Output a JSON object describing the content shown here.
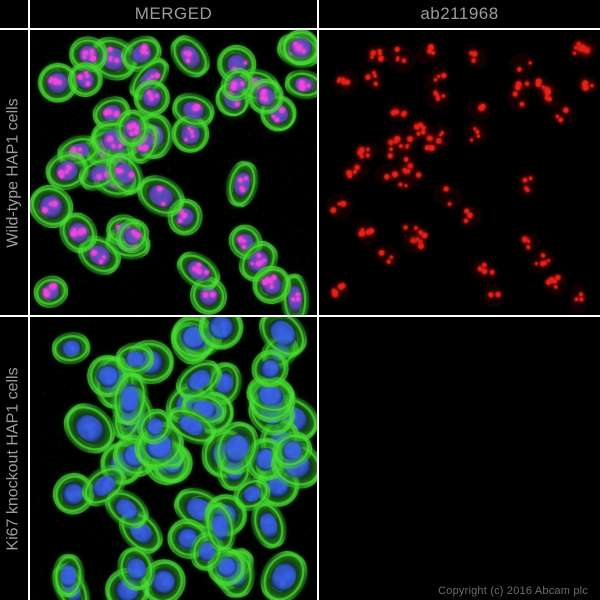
{
  "figure": {
    "column_headers": [
      {
        "label": "MERGED"
      },
      {
        "label": "ab211968"
      }
    ],
    "row_labels": [
      {
        "label": "Wild-type HAP1 cells"
      },
      {
        "label": "Ki67 knockout HAP1 cells"
      }
    ],
    "copyright": "Copyright (c) 2016 Abcam plc",
    "style": {
      "background": "#000000",
      "grid_line_color": "#ffffff",
      "header_text_color": "#9c9c9c",
      "copyright_color": "#6d6d6d"
    },
    "colors": {
      "background": "#000000",
      "cytoplasm_green": "#2db42d",
      "cytoplasm_green_bright": "#4fe636",
      "nucleus_core_wt": "#3e4ec4",
      "nucleus_edge_wt": "#10164f",
      "nucleus_core_ko": "#3c63ee",
      "nucleus_edge_ko": "#12206e",
      "ki67_dot_magenta": "#ee46da",
      "ab_dot_red": "#e62119"
    },
    "panels": [
      {
        "slot": "wild-type-merged",
        "type": "merged",
        "seed": 101,
        "cell_count": 47,
        "cell_scale": 1.0,
        "nucleus": "wt",
        "show_dots": true
      },
      {
        "slot": "wild-type-ab211968",
        "type": "dots",
        "seed": 101,
        "cell_count": 47,
        "cell_scale": 1.0,
        "nucleus": "wt",
        "show_dots": false
      },
      {
        "slot": "ki67-knockout-merged",
        "type": "merged",
        "seed": 202,
        "cell_count": 62,
        "cell_scale": 1.12,
        "nucleus": "ko",
        "show_dots": false
      },
      {
        "slot": "ki67-knockout-ab211968",
        "type": "empty",
        "seed": 303,
        "cell_count": 0,
        "cell_scale": 1.0,
        "nucleus": "ko",
        "show_dots": false
      }
    ]
  }
}
